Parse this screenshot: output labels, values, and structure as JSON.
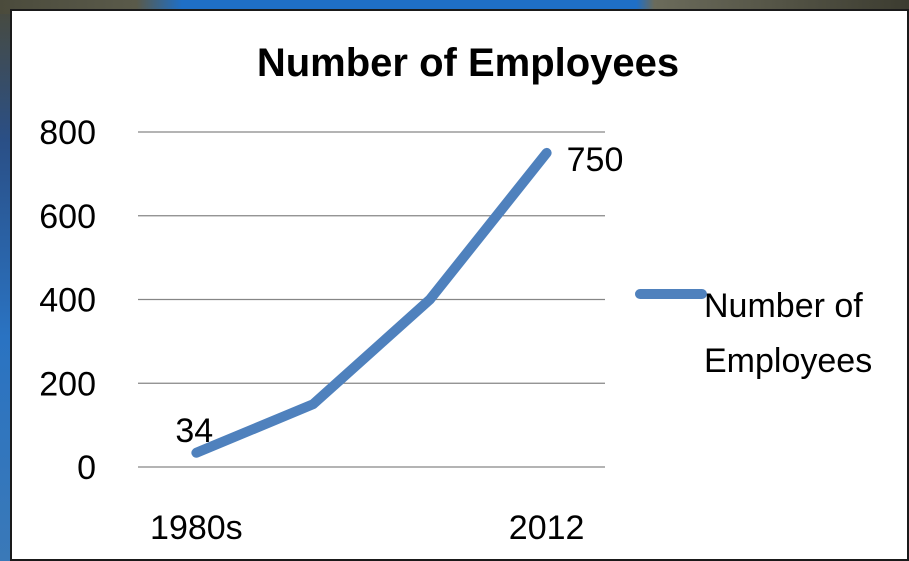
{
  "chart_data": {
    "type": "line",
    "title": "Number of Employees",
    "xlabel": "",
    "ylabel": "",
    "ylim": [
      0,
      800
    ],
    "yticks": [
      "0",
      "200",
      "400",
      "600",
      "800"
    ],
    "x": [
      "1980s",
      "",
      "",
      "2012"
    ],
    "series": [
      {
        "name": "Number of Employees",
        "values": [
          34,
          150,
          400,
          750
        ],
        "data_labels": [
          "34",
          "",
          "",
          "750"
        ]
      }
    ],
    "legend": {
      "position": "right",
      "lines": [
        "Number of",
        "Employees"
      ]
    },
    "grid": true,
    "colors": {
      "series": "#4f81bd",
      "grid": "#868686",
      "axis": "#868686"
    }
  }
}
